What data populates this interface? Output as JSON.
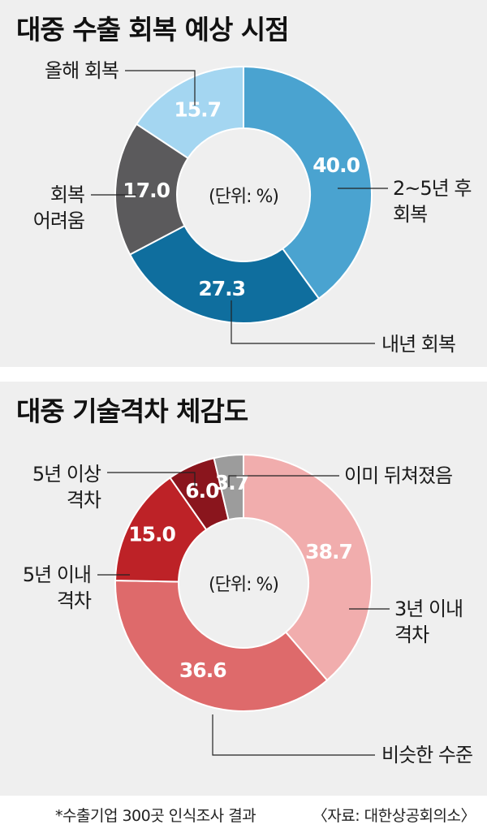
{
  "charts": [
    {
      "title": "대중 수출 회복 예상 시점",
      "unit_label": "(단위: %)",
      "chart_data": {
        "type": "pie",
        "title": "대중 수출 회복 예상 시점",
        "unit": "(단위: %)",
        "slices": [
          {
            "label": "2~5년 후 회복",
            "value": 40.0,
            "color": "#4aa3d0",
            "label_lines": [
              "2~5년 후",
              "회복"
            ]
          },
          {
            "label": "내년 회복",
            "value": 27.3,
            "color": "#0f6e9e",
            "label_lines": [
              "내년 회복"
            ]
          },
          {
            "label": "회복 어려움",
            "value": 17.0,
            "color": "#5b5a5c",
            "label_lines": [
              "회복",
              "어려움"
            ]
          },
          {
            "label": "올해 회복",
            "value": 15.7,
            "color": "#a4d6f1",
            "label_lines": [
              "올해 회복"
            ]
          }
        ]
      }
    },
    {
      "title": "대중 기술격차 체감도",
      "unit_label": "(단위: %)",
      "chart_data": {
        "type": "pie",
        "title": "대중 기술격차 체감도",
        "unit": "(단위: %)",
        "slices": [
          {
            "label": "3년 이내 격차",
            "value": 38.7,
            "color": "#f1adad",
            "label_lines": [
              "3년 이내",
              "격차"
            ]
          },
          {
            "label": "비슷한 수준",
            "value": 36.6,
            "color": "#de6a6b",
            "label_lines": [
              "비슷한 수준"
            ]
          },
          {
            "label": "5년 이내 격차",
            "value": 15.0,
            "color": "#bd2227",
            "label_lines": [
              "5년 이내",
              "격차"
            ]
          },
          {
            "label": "5년 이상 격차",
            "value": 6.0,
            "color": "#8a151d",
            "label_lines": [
              "5년 이상",
              "격차"
            ]
          },
          {
            "label": "이미 뒤쳐졌음",
            "value": 3.7,
            "color": "#9c9c9c",
            "label_lines": [
              "이미 뒤쳐졌음"
            ]
          }
        ]
      }
    }
  ],
  "footer": {
    "note": "*수출기업 300곳 인식조사 결과",
    "source": "〈자료: 대한상공회의소〉"
  }
}
